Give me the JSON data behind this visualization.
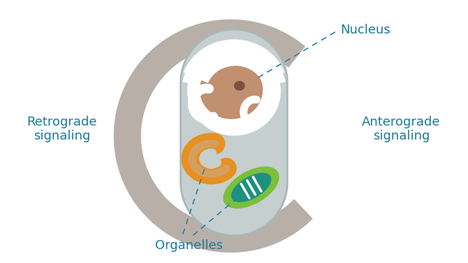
{
  "bg_color": "#ffffff",
  "cell_color": "#c5cfcf",
  "cell_edge_color": "#a8b8b8",
  "nucleus_white": "#ffffff",
  "nucleus_brown": "#c09070",
  "nucleolus_color": "#7a5040",
  "chloroplast_outer": "#7bbf3a",
  "chloroplast_inner": "#1e9080",
  "mitochondria_color": "#e89020",
  "arrow_color": "#b8b0a8",
  "label_color": "#1a7a9a",
  "dashed_color": "#2a7fa0",
  "label_fontsize": 13,
  "figsize": [
    6.7,
    3.77
  ],
  "dpi": 100,
  "labels": {
    "nucleus": "Nucleus",
    "organelles": "Organelles",
    "retrograde": "Retrograde\nsignaling",
    "anterograde": "Anterograde\nsignaling"
  }
}
